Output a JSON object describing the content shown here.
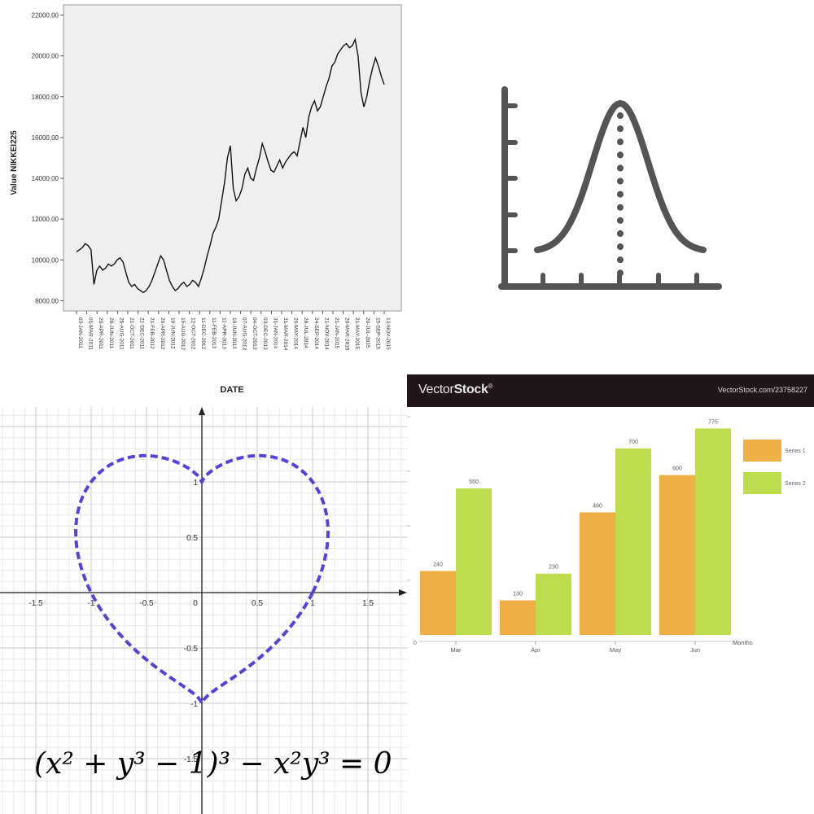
{
  "chart_data": [
    {
      "type": "line",
      "ylabel": "Value NIKKEI225",
      "xlabel": "DATE",
      "y_ticks": [
        "8000,00",
        "10000,00",
        "12000,00",
        "14000,00",
        "16000,00",
        "18000,00",
        "20000,00",
        "22000,00"
      ],
      "ylim": [
        7500,
        22500
      ],
      "x_ticks": [
        "03-JAN-2011",
        "01-MAR-2011",
        "29-APR-2011",
        "28-JUN-2011",
        "25-AUG-2011",
        "21-OCT-2011",
        "21-DEC-2011",
        "21-FEB-2012",
        "20-APR-2012",
        "19-JUN-2012",
        "15-AUG-2012",
        "12-OCT-2012",
        "11-DEC-2012",
        "11-FEB-2013",
        "11-APR-2013",
        "10-JUN-2013",
        "07-AUG-2013",
        "04-OCT-2013",
        "03-DEC-2013",
        "31-JAN-2014",
        "31-MAR-2014",
        "29-MAY-2014",
        "28-JUL-2014",
        "24-SEP-2014",
        "21-NOV-2014",
        "21-JAN-2015",
        "20-MAR-2015",
        "21-MAY-2015",
        "20-JUL-2015",
        "15-SEP-2015",
        "13-NOV-2015"
      ],
      "series": [
        {
          "values": [
            10400,
            10500,
            10600,
            10800,
            10700,
            10500,
            8800,
            9500,
            9700,
            9500,
            9600,
            9800,
            9700,
            9800,
            10000,
            10100,
            9900,
            9400,
            8900,
            8700,
            8800,
            8600,
            8500,
            8400,
            8500,
            8700,
            9000,
            9400,
            9800,
            10200,
            10000,
            9500,
            9000,
            8700,
            8500,
            8600,
            8800,
            8900,
            8700,
            8800,
            9000,
            8900,
            8700,
            9100,
            9600,
            10200,
            10700,
            11300,
            11600,
            12000,
            12900,
            13800,
            15000,
            15600,
            13500,
            12900,
            13100,
            13500,
            14200,
            14500,
            14000,
            13900,
            14500,
            15000,
            15700,
            15300,
            14800,
            14400,
            14300,
            14600,
            14900,
            14500,
            14800,
            15000,
            15200,
            15300,
            15100,
            15800,
            16500,
            16000,
            17000,
            17500,
            17800,
            17300,
            17500,
            18000,
            18500,
            18900,
            19500,
            19700,
            20100,
            20300,
            20500,
            20600,
            20400,
            20500,
            20800,
            20000,
            18200,
            17500,
            18000,
            18800,
            19400,
            19900,
            19500,
            19000,
            18600
          ]
        }
      ]
    },
    {
      "type": "line",
      "description_visible": "",
      "series": [
        {
          "values": [
            0.05,
            0.1,
            0.22,
            0.42,
            0.68,
            0.88,
            0.99,
            1.0,
            0.99,
            0.88,
            0.68,
            0.42,
            0.22,
            0.1,
            0.05
          ]
        }
      ]
    },
    {
      "type": "line",
      "equation": "(x² + y³ − 1)³ − x²y³ = 0",
      "x_ticks": [
        "-1.5",
        "-1",
        "-0.5",
        "0",
        "0.5",
        "1",
        "1.5"
      ],
      "y_ticks": [
        "1",
        "0.5",
        "-0.5",
        "-1",
        "-1.5"
      ],
      "xlim": [
        -1.75,
        1.75
      ],
      "ylim": [
        -1.75,
        1.15
      ],
      "line_color": "#5b3fd9",
      "curve": "heart"
    },
    {
      "type": "bar",
      "categories": [
        "Mar",
        "Apr",
        "May",
        "Jun"
      ],
      "xlabel": "Months",
      "series": [
        {
          "name": "Series 1",
          "values": [
            240,
            130,
            460,
            600
          ],
          "color": "#f0ae46"
        },
        {
          "name": "Series 2",
          "values": [
            550,
            230,
            700,
            775
          ],
          "color": "#bedd4e"
        }
      ],
      "ylim": [
        0,
        825
      ]
    }
  ],
  "brand": {
    "name_light": "Vector",
    "name_bold": "Stock",
    "mark": "®",
    "url": "VectorStock.com/23758227"
  }
}
